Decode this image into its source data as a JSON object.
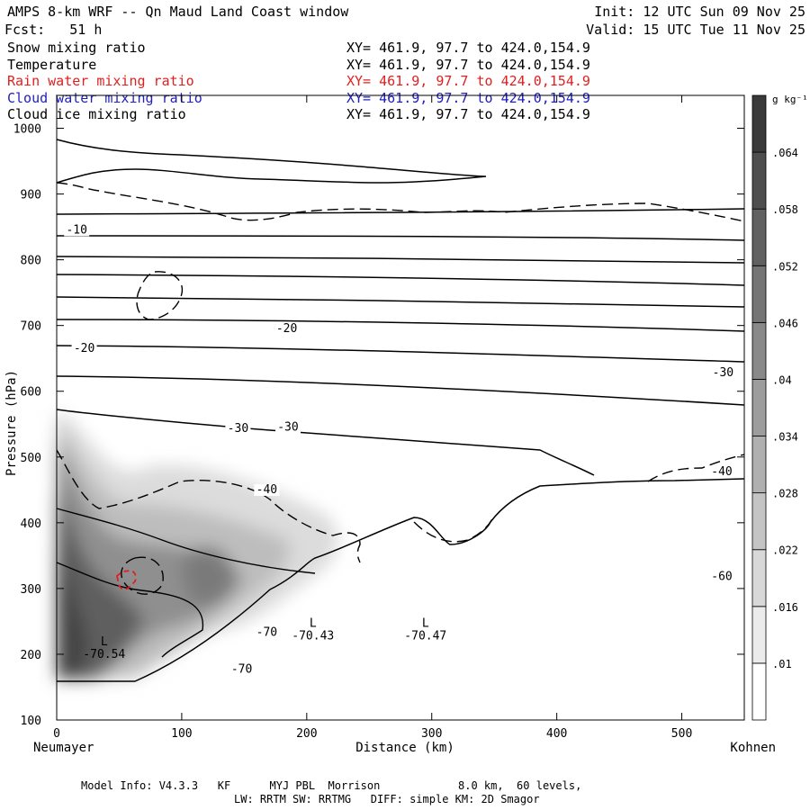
{
  "header": {
    "title": "AMPS 8-km WRF -- Qn Maud Land Coast window",
    "init": "Init: 12 UTC Sun 09 Nov 25",
    "fcst": "Fcst:   51 h",
    "valid": "Valid: 15 UTC Tue 11 Nov 25"
  },
  "fields": [
    {
      "name": "Snow mixing ratio",
      "xy": "XY= 461.9, 97.7 to 424.0,154.9",
      "color": "#000000"
    },
    {
      "name": "Temperature",
      "xy": "XY= 461.9, 97.7 to 424.0,154.9",
      "color": "#000000"
    },
    {
      "name": "Rain water mixing ratio",
      "xy": "XY= 461.9, 97.7 to 424.0,154.9",
      "color": "#e02020"
    },
    {
      "name": "Cloud water mixing ratio",
      "xy": "XY= 461.9, 97.7 to 424.0,154.9",
      "color": "#2020c0"
    },
    {
      "name": "Cloud ice mixing ratio",
      "xy": "XY= 461.9, 97.7 to 424.0,154.9",
      "color": "#000000"
    }
  ],
  "footer": {
    "line1": "Model Info: V4.3.3   KF      MYJ PBL  Morrison            8.0 km,  60 levels,",
    "line2": "LW: RRTM SW: RRTMG   DIFF: simple KM: 2D Smagor"
  },
  "chart_data": {
    "type": "cross-section",
    "xlabel": "Distance (km)",
    "ylabel": "Pressure (hPa)",
    "xlim": [
      0,
      550
    ],
    "ylim": [
      1050,
      100
    ],
    "xticks": [
      0,
      100,
      200,
      300,
      400,
      500
    ],
    "yticks": [
      100,
      200,
      300,
      400,
      500,
      600,
      700,
      800,
      900,
      1000
    ],
    "left_endpoint": "Neumayer",
    "right_endpoint": "Kohnen",
    "colorbar": {
      "unit": "g kg⁻¹",
      "ticks": [
        ".01",
        ".016",
        ".022",
        ".028",
        ".034",
        ".04",
        ".046",
        ".052",
        ".058",
        ".064"
      ],
      "min_color": "#ffffff",
      "max_color": "#3a3a3a"
    },
    "temperature_labels": [
      {
        "text": "-70",
        "x": 148,
        "p": 172
      },
      {
        "text": "-70",
        "x": 168,
        "p": 228
      },
      {
        "text": "-60",
        "x": 532,
        "p": 313
      },
      {
        "text": "-40",
        "x": 168,
        "p": 445
      },
      {
        "text": "-40",
        "x": 532,
        "p": 472
      },
      {
        "text": "-30",
        "x": 145,
        "p": 538
      },
      {
        "text": "-30",
        "x": 185,
        "p": 540
      },
      {
        "text": "-30",
        "x": 533,
        "p": 623
      },
      {
        "text": "-20",
        "x": 22,
        "p": 660
      },
      {
        "text": "-20",
        "x": 184,
        "p": 690
      },
      {
        "text": "-10",
        "x": 16,
        "p": 840
      }
    ],
    "minima": [
      {
        "label": "L",
        "value": "-70.54",
        "x": 38,
        "p": 200
      },
      {
        "label": "L",
        "value": "-70.43",
        "x": 205,
        "p": 228
      },
      {
        "label": "L",
        "value": "-70.47",
        "x": 295,
        "p": 228
      }
    ]
  }
}
